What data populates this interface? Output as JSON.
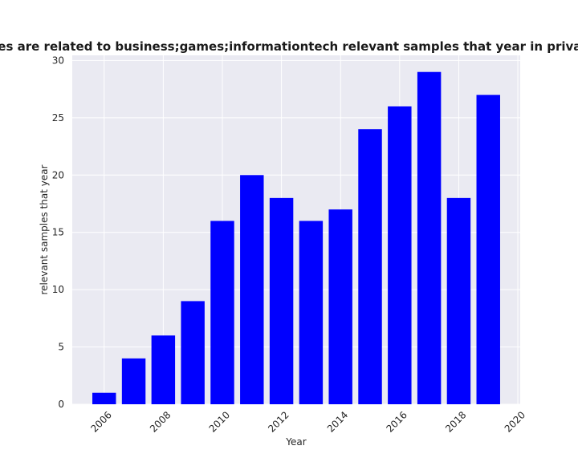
{
  "chart_data": {
    "type": "bar",
    "title": "Categories are related to business;games;informationtech relevant samples that year in privacy policies",
    "xlabel": "Year",
    "ylabel": "relevant samples that year",
    "x": [
      2006,
      2007,
      2008,
      2009,
      2010,
      2011,
      2012,
      2013,
      2014,
      2015,
      2016,
      2017,
      2018,
      2019
    ],
    "values": [
      1,
      4,
      6,
      9,
      16,
      20,
      18,
      16,
      17,
      24,
      26,
      29,
      18,
      27
    ],
    "xlim": [
      2004.92,
      2020.08
    ],
    "ylim": [
      0,
      30.45
    ],
    "xticks": [
      2006,
      2008,
      2010,
      2012,
      2014,
      2016,
      2018,
      2020
    ],
    "yticks": [
      0,
      5,
      10,
      15,
      20,
      25,
      30
    ],
    "bar_color": "#0000ff",
    "plot_background": "#eaeaf2",
    "grid": true,
    "grid_color": "#ffffff"
  }
}
